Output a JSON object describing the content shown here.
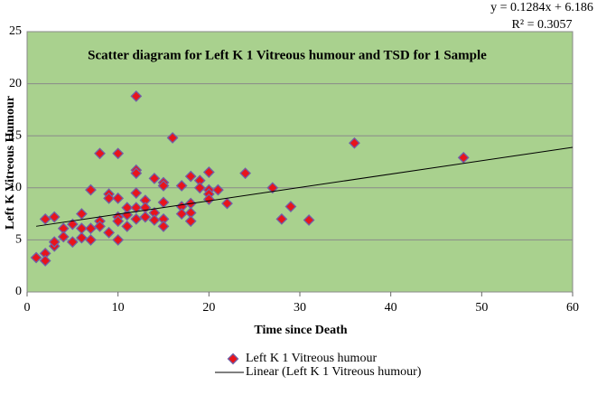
{
  "chart_data": {
    "type": "scatter",
    "title": "Scatter diagram for Left K 1 Vitreous humour and TSD for 1 Sample",
    "xlabel": "Time since Death",
    "ylabel": "Left K Vitreous Humour",
    "equation": "y = 0.1284x + 6.186",
    "r_squared": "R² = 0.3057",
    "xlim": [
      0,
      60
    ],
    "xticks": [
      0,
      10,
      20,
      30,
      40,
      50,
      60
    ],
    "ylim": [
      0,
      25
    ],
    "yticks": [
      0,
      5,
      10,
      15,
      20,
      25
    ],
    "grid": true,
    "background": "#a9d18e",
    "series": [
      {
        "name": "Left K 1 Vitreous humour",
        "color": "#e8141b",
        "edge": "#7060a8",
        "x": [
          1,
          2,
          2,
          2,
          3,
          3,
          3,
          4,
          4,
          5,
          5,
          6,
          6,
          6,
          7,
          7,
          7,
          8,
          8,
          8,
          9,
          9,
          9,
          10,
          10,
          10,
          10,
          10,
          11,
          11,
          11,
          12,
          12,
          12,
          12,
          12,
          12,
          13,
          13,
          13,
          14,
          14,
          14,
          15,
          15,
          15,
          15,
          15,
          16,
          17,
          17,
          17,
          18,
          18,
          18,
          18,
          19,
          19,
          20,
          20,
          20,
          20,
          21,
          22,
          24,
          27,
          28,
          29,
          31,
          36,
          48
        ],
        "values": [
          3.3,
          7.0,
          3.7,
          3.0,
          7.2,
          4.4,
          4.8,
          6.1,
          5.3,
          6.5,
          4.8,
          7.5,
          5.2,
          6.1,
          9.8,
          6.1,
          5.0,
          13.3,
          6.8,
          6.3,
          9.4,
          5.7,
          9.0,
          13.3,
          9.0,
          7.2,
          6.8,
          5.0,
          7.4,
          6.3,
          8.1,
          18.8,
          11.7,
          11.4,
          9.5,
          8.1,
          7.0,
          8.8,
          8.1,
          7.2,
          10.9,
          7.6,
          6.9,
          10.5,
          10.2,
          8.6,
          7.0,
          6.3,
          14.8,
          10.2,
          8.2,
          7.5,
          11.1,
          8.5,
          7.6,
          6.8,
          10.7,
          10.0,
          11.5,
          9.8,
          9.4,
          8.9,
          9.8,
          8.5,
          11.4,
          10.0,
          7.0,
          8.2,
          6.9,
          14.3,
          12.9
        ]
      }
    ],
    "trendline": {
      "name": "Linear (Left K 1 Vitreous humour)",
      "color": "#000000",
      "x": [
        1,
        60
      ],
      "y": [
        6.31,
        13.89
      ]
    }
  }
}
